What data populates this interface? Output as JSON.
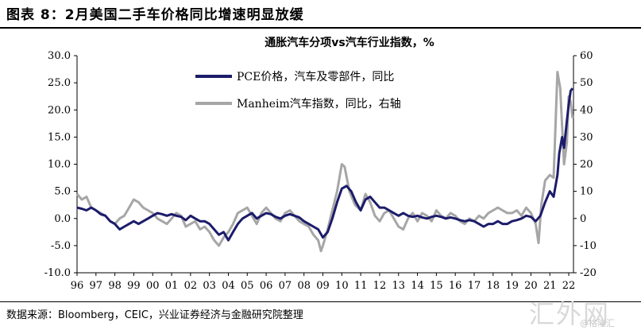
{
  "figure": {
    "title": "图表 8：2月美国二手车价格同比增速明显放缓",
    "source": "数据来源：Bloomberg，CEIC，兴业证券经济与金融研究院整理",
    "watermark": "汇外网",
    "watermark_sub": "@格隆汇"
  },
  "chart_data": {
    "type": "line",
    "title": "通胀汽车分项vs汽车行业指数，%",
    "xlabel": "",
    "ylabel": "",
    "x_ticks": [
      "96",
      "97",
      "98",
      "99",
      "00",
      "01",
      "02",
      "03",
      "04",
      "05",
      "06",
      "07",
      "08",
      "09",
      "10",
      "11",
      "12",
      "13",
      "14",
      "15",
      "16",
      "17",
      "18",
      "19",
      "20",
      "21",
      "22"
    ],
    "x_range": [
      1996.0,
      2022.25
    ],
    "ylim_left": [
      -10.0,
      30.0
    ],
    "yticks_left": [
      "-10.0",
      "-5.0",
      "0.0",
      "5.0",
      "10.0",
      "15.0",
      "20.0",
      "25.0",
      "30.0"
    ],
    "ylim_right": [
      -20,
      60
    ],
    "yticks_right": [
      "-20",
      "-10",
      "0",
      "10",
      "20",
      "30",
      "40",
      "50",
      "60"
    ],
    "grid": false,
    "legend_position": "top-left",
    "series": [
      {
        "name": "Manheim汽车指数，同比，右轴",
        "axis": "right",
        "color": "#a6a6a6",
        "points": [
          [
            1996.0,
            9
          ],
          [
            1996.25,
            7
          ],
          [
            1996.5,
            8
          ],
          [
            1996.75,
            4
          ],
          [
            1997.0,
            3
          ],
          [
            1997.25,
            2
          ],
          [
            1997.5,
            1
          ],
          [
            1997.75,
            -1
          ],
          [
            1998.0,
            -2
          ],
          [
            1998.25,
            0
          ],
          [
            1998.5,
            1
          ],
          [
            1998.75,
            4
          ],
          [
            1999.0,
            7
          ],
          [
            1999.25,
            6
          ],
          [
            1999.5,
            4
          ],
          [
            1999.75,
            3
          ],
          [
            2000.0,
            2
          ],
          [
            2000.25,
            0
          ],
          [
            2000.5,
            -1
          ],
          [
            2000.75,
            -2
          ],
          [
            2001.0,
            0
          ],
          [
            2001.25,
            2
          ],
          [
            2001.5,
            1
          ],
          [
            2001.75,
            -3
          ],
          [
            2002.0,
            -2
          ],
          [
            2002.25,
            -1
          ],
          [
            2002.5,
            -4
          ],
          [
            2002.75,
            -3
          ],
          [
            2003.0,
            -5
          ],
          [
            2003.25,
            -8
          ],
          [
            2003.5,
            -10
          ],
          [
            2003.75,
            -7
          ],
          [
            2004.0,
            -5
          ],
          [
            2004.25,
            -2
          ],
          [
            2004.5,
            2
          ],
          [
            2004.75,
            3
          ],
          [
            2005.0,
            4
          ],
          [
            2005.25,
            1
          ],
          [
            2005.5,
            -2
          ],
          [
            2005.75,
            2
          ],
          [
            2006.0,
            4
          ],
          [
            2006.25,
            2
          ],
          [
            2006.5,
            0
          ],
          [
            2006.75,
            -1
          ],
          [
            2007.0,
            2
          ],
          [
            2007.25,
            3
          ],
          [
            2007.5,
            1
          ],
          [
            2007.75,
            -1
          ],
          [
            2008.0,
            -2
          ],
          [
            2008.25,
            -3
          ],
          [
            2008.5,
            -6
          ],
          [
            2008.75,
            -8
          ],
          [
            2008.9,
            -12
          ],
          [
            2009.0,
            -10
          ],
          [
            2009.25,
            -4
          ],
          [
            2009.5,
            3
          ],
          [
            2009.75,
            10
          ],
          [
            2010.0,
            20
          ],
          [
            2010.15,
            19
          ],
          [
            2010.4,
            10
          ],
          [
            2010.7,
            5
          ],
          [
            2011.0,
            3
          ],
          [
            2011.25,
            9
          ],
          [
            2011.5,
            6
          ],
          [
            2011.75,
            1
          ],
          [
            2012.0,
            -1
          ],
          [
            2012.25,
            2
          ],
          [
            2012.5,
            3
          ],
          [
            2012.75,
            0
          ],
          [
            2013.0,
            -3
          ],
          [
            2013.25,
            -4
          ],
          [
            2013.5,
            0
          ],
          [
            2013.75,
            2
          ],
          [
            2014.0,
            -1
          ],
          [
            2014.25,
            2
          ],
          [
            2014.5,
            1
          ],
          [
            2014.75,
            -1
          ],
          [
            2015.0,
            3
          ],
          [
            2015.25,
            1
          ],
          [
            2015.5,
            0
          ],
          [
            2015.75,
            2
          ],
          [
            2016.0,
            1
          ],
          [
            2016.25,
            -1
          ],
          [
            2016.5,
            -2
          ],
          [
            2016.75,
            0
          ],
          [
            2017.0,
            -1
          ],
          [
            2017.25,
            1
          ],
          [
            2017.5,
            0
          ],
          [
            2017.75,
            2
          ],
          [
            2018.0,
            3
          ],
          [
            2018.25,
            4
          ],
          [
            2018.5,
            3
          ],
          [
            2018.75,
            2
          ],
          [
            2019.0,
            2
          ],
          [
            2019.25,
            3
          ],
          [
            2019.5,
            1
          ],
          [
            2019.75,
            4
          ],
          [
            2020.0,
            2
          ],
          [
            2020.25,
            -2
          ],
          [
            2020.4,
            -9
          ],
          [
            2020.55,
            5
          ],
          [
            2020.75,
            14
          ],
          [
            2021.0,
            16
          ],
          [
            2021.2,
            15
          ],
          [
            2021.4,
            54
          ],
          [
            2021.55,
            48
          ],
          [
            2021.75,
            20
          ],
          [
            2021.9,
            28
          ],
          [
            2022.0,
            45
          ],
          [
            2022.1,
            43
          ],
          [
            2022.2,
            37
          ]
        ]
      },
      {
        "name": "PCE价格，汽车及零部件，同比",
        "axis": "left",
        "color": "#1c1c6b",
        "points": [
          [
            1996.0,
            2.0
          ],
          [
            1996.25,
            1.8
          ],
          [
            1996.5,
            1.5
          ],
          [
            1996.75,
            2.0
          ],
          [
            1997.0,
            1.5
          ],
          [
            1997.25,
            0.8
          ],
          [
            1997.5,
            0.5
          ],
          [
            1997.75,
            -0.5
          ],
          [
            1998.0,
            -1.0
          ],
          [
            1998.25,
            -2.0
          ],
          [
            1998.5,
            -1.5
          ],
          [
            1998.75,
            -1.0
          ],
          [
            1999.0,
            -0.5
          ],
          [
            1999.25,
            -1.0
          ],
          [
            1999.5,
            -0.5
          ],
          [
            1999.75,
            0.0
          ],
          [
            2000.0,
            0.5
          ],
          [
            2000.25,
            1.0
          ],
          [
            2000.5,
            0.8
          ],
          [
            2000.75,
            0.5
          ],
          [
            2001.0,
            0.8
          ],
          [
            2001.25,
            0.5
          ],
          [
            2001.5,
            0.3
          ],
          [
            2001.75,
            -0.3
          ],
          [
            2002.0,
            0.5
          ],
          [
            2002.25,
            0.0
          ],
          [
            2002.5,
            -0.5
          ],
          [
            2002.75,
            -0.5
          ],
          [
            2003.0,
            -1.0
          ],
          [
            2003.25,
            -2.0
          ],
          [
            2003.5,
            -3.0
          ],
          [
            2003.75,
            -2.5
          ],
          [
            2004.0,
            -4.0
          ],
          [
            2004.25,
            -2.5
          ],
          [
            2004.5,
            -1.0
          ],
          [
            2004.75,
            0.0
          ],
          [
            2005.0,
            0.5
          ],
          [
            2005.25,
            1.0
          ],
          [
            2005.5,
            0.0
          ],
          [
            2005.75,
            0.5
          ],
          [
            2006.0,
            1.0
          ],
          [
            2006.25,
            0.8
          ],
          [
            2006.5,
            0.3
          ],
          [
            2006.75,
            0.0
          ],
          [
            2007.0,
            0.5
          ],
          [
            2007.25,
            0.8
          ],
          [
            2007.5,
            0.5
          ],
          [
            2007.75,
            0.2
          ],
          [
            2008.0,
            -0.5
          ],
          [
            2008.25,
            -1.0
          ],
          [
            2008.5,
            -1.5
          ],
          [
            2008.75,
            -2.0
          ],
          [
            2009.0,
            -3.5
          ],
          [
            2009.25,
            -2.5
          ],
          [
            2009.5,
            0.0
          ],
          [
            2009.75,
            3.0
          ],
          [
            2010.0,
            5.5
          ],
          [
            2010.25,
            6.0
          ],
          [
            2010.5,
            5.0
          ],
          [
            2010.75,
            3.0
          ],
          [
            2011.0,
            1.5
          ],
          [
            2011.25,
            3.5
          ],
          [
            2011.5,
            4.0
          ],
          [
            2011.75,
            3.0
          ],
          [
            2012.0,
            2.0
          ],
          [
            2012.25,
            2.0
          ],
          [
            2012.5,
            1.5
          ],
          [
            2012.75,
            1.0
          ],
          [
            2013.0,
            0.5
          ],
          [
            2013.25,
            1.0
          ],
          [
            2013.5,
            0.5
          ],
          [
            2013.75,
            0.3
          ],
          [
            2014.0,
            0.5
          ],
          [
            2014.25,
            0.2
          ],
          [
            2014.5,
            0.0
          ],
          [
            2014.75,
            0.3
          ],
          [
            2015.0,
            0.5
          ],
          [
            2015.25,
            0.3
          ],
          [
            2015.5,
            0.0
          ],
          [
            2015.75,
            0.2
          ],
          [
            2016.0,
            0.0
          ],
          [
            2016.25,
            -0.3
          ],
          [
            2016.5,
            -0.5
          ],
          [
            2016.75,
            -0.3
          ],
          [
            2017.0,
            -0.5
          ],
          [
            2017.25,
            -1.0
          ],
          [
            2017.5,
            -1.5
          ],
          [
            2017.75,
            -1.0
          ],
          [
            2018.0,
            -1.0
          ],
          [
            2018.25,
            -0.5
          ],
          [
            2018.5,
            -1.0
          ],
          [
            2018.75,
            -1.0
          ],
          [
            2019.0,
            -0.5
          ],
          [
            2019.25,
            -0.3
          ],
          [
            2019.5,
            0.0
          ],
          [
            2019.75,
            0.5
          ],
          [
            2020.0,
            0.3
          ],
          [
            2020.25,
            -0.5
          ],
          [
            2020.5,
            0.5
          ],
          [
            2020.75,
            3.0
          ],
          [
            2021.0,
            5.0
          ],
          [
            2021.2,
            4.0
          ],
          [
            2021.4,
            8.0
          ],
          [
            2021.5,
            12.0
          ],
          [
            2021.65,
            15.0
          ],
          [
            2021.75,
            13.0
          ],
          [
            2021.9,
            18.0
          ],
          [
            2022.0,
            21.0
          ],
          [
            2022.1,
            23.5
          ],
          [
            2022.2,
            24.0
          ]
        ]
      }
    ]
  }
}
